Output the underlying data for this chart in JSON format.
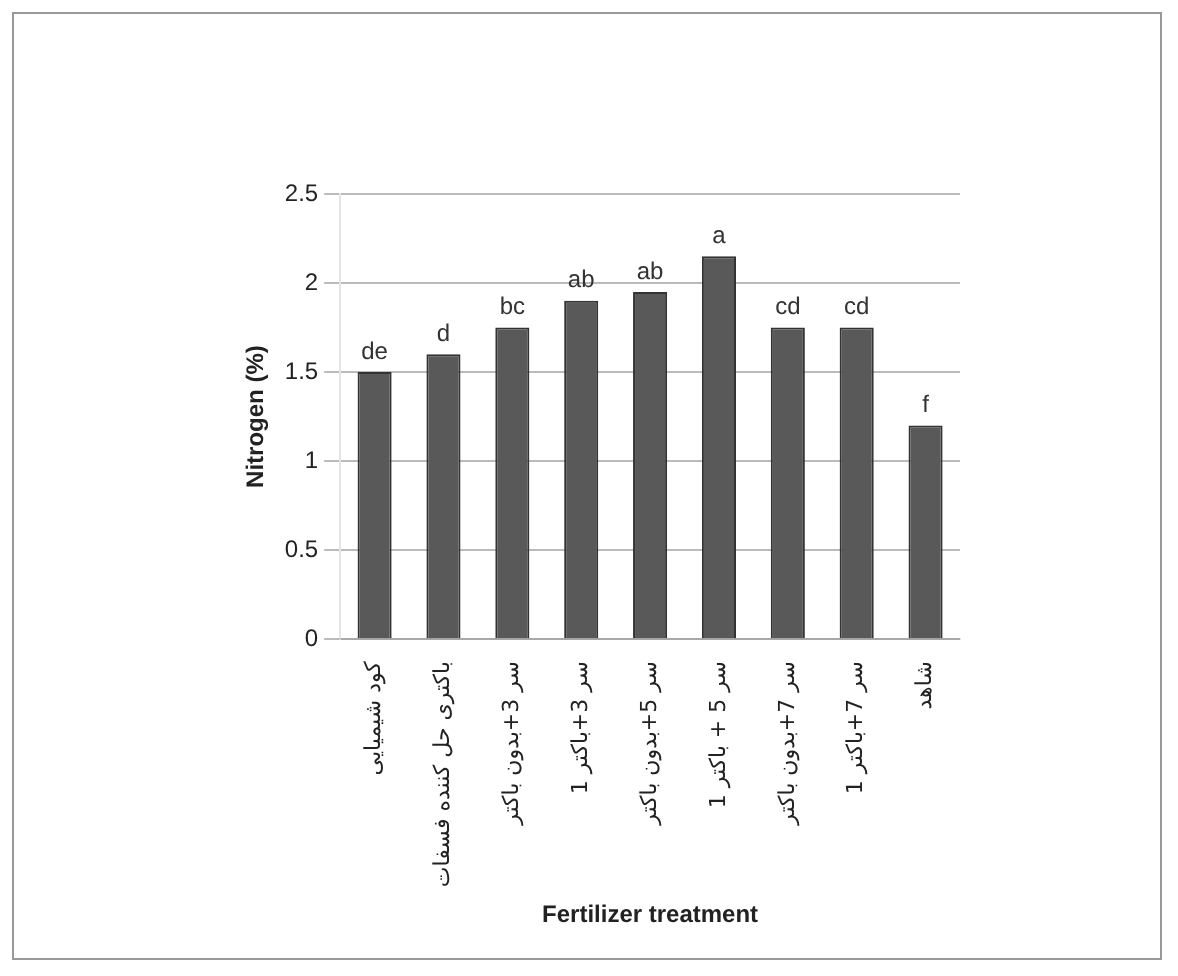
{
  "chart_data": {
    "type": "bar",
    "xlabel": "Fertilizer treatment",
    "ylabel": "Nitrogen (%)",
    "categories": [
      "کود شیمیایی",
      "باکتری حل کننده فسفات",
      "سر 3+بدون باکتر",
      "سر 3+باکتر 1",
      "سر 5+بدون باکتر",
      "سر 5 + باکتر 1",
      "سر 7+بدون باکتر",
      "سر 7+باکتر 1",
      "شاهد"
    ],
    "values": [
      1.5,
      1.6,
      1.75,
      1.9,
      1.95,
      2.15,
      1.75,
      1.75,
      1.2
    ],
    "color": "#595959",
    "ylim": [
      0,
      2.5
    ],
    "yticks": [
      0,
      0.5,
      1,
      1.5,
      2,
      2.5
    ],
    "grid": "y",
    "legend": false,
    "annotations": [
      {
        "text": "de",
        "x": "کود شیمیایی",
        "y": 1.5
      },
      {
        "text": "d",
        "x": "باکتری حل کننده فسفات",
        "y": 1.6
      },
      {
        "text": "bc",
        "x": "سر 3+بدون باکتر",
        "y": 1.75
      },
      {
        "text": "ab",
        "x": "سر 3+باکتر 1",
        "y": 1.9
      },
      {
        "text": "ab",
        "x": "سر 5+بدون باکتر",
        "y": 1.95
      },
      {
        "text": "a",
        "x": "سر 5 + باکتر 1",
        "y": 2.15
      },
      {
        "text": "cd",
        "x": "سر 7+بدون باکتر",
        "y": 1.75
      },
      {
        "text": "cd",
        "x": "سر 7+باکتر 1",
        "y": 1.75
      },
      {
        "text": "f",
        "x": "شاهد",
        "y": 1.2
      }
    ]
  }
}
